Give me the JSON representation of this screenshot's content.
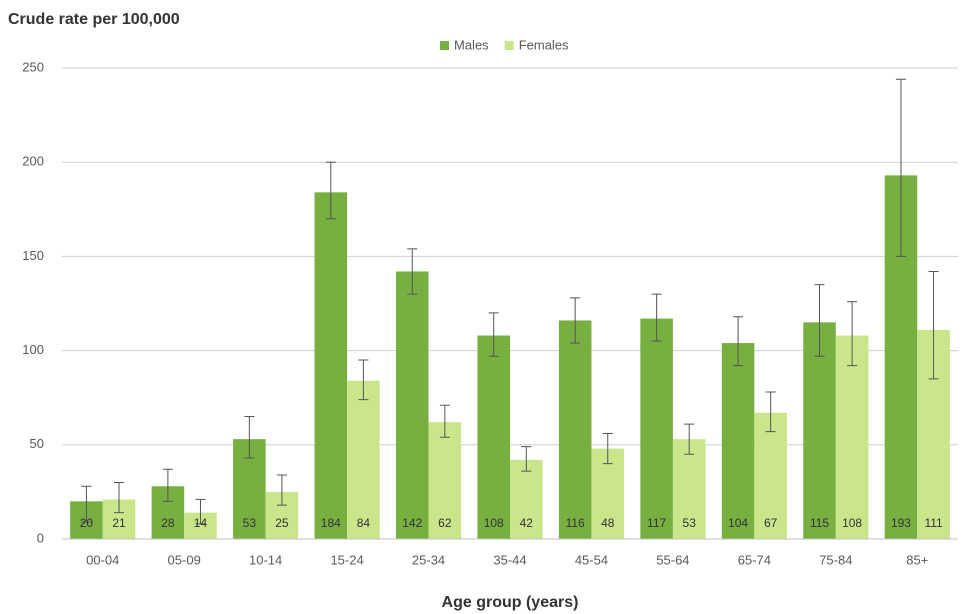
{
  "chart_data": {
    "type": "bar",
    "title": "Crude rate per 100,000",
    "x_label": "Age group (years)",
    "categories": [
      "00-04",
      "05-09",
      "10-14",
      "15-24",
      "25-34",
      "35-44",
      "45-54",
      "55-64",
      "65-74",
      "75-84",
      "85+"
    ],
    "series": [
      {
        "name": "Males",
        "color": "#77b041",
        "values": [
          20,
          28,
          53,
          184,
          142,
          108,
          116,
          117,
          104,
          115,
          193
        ],
        "ci_low": [
          9,
          20,
          43,
          170,
          130,
          97,
          104,
          105,
          92,
          97,
          150
        ],
        "ci_high": [
          28,
          37,
          65,
          200,
          154,
          120,
          128,
          130,
          118,
          135,
          244
        ]
      },
      {
        "name": "Females",
        "color": "#c9e68a",
        "values": [
          21,
          14,
          25,
          84,
          62,
          42,
          48,
          53,
          67,
          108,
          111
        ],
        "ci_low": [
          14,
          8,
          18,
          74,
          54,
          36,
          40,
          45,
          57,
          92,
          85
        ],
        "ci_high": [
          30,
          21,
          34,
          95,
          71,
          49,
          56,
          61,
          78,
          126,
          142
        ]
      }
    ],
    "ylim": [
      0,
      250
    ],
    "yticks": [
      0,
      50,
      100,
      150,
      200,
      250
    ],
    "grid": true,
    "legend": "top"
  }
}
